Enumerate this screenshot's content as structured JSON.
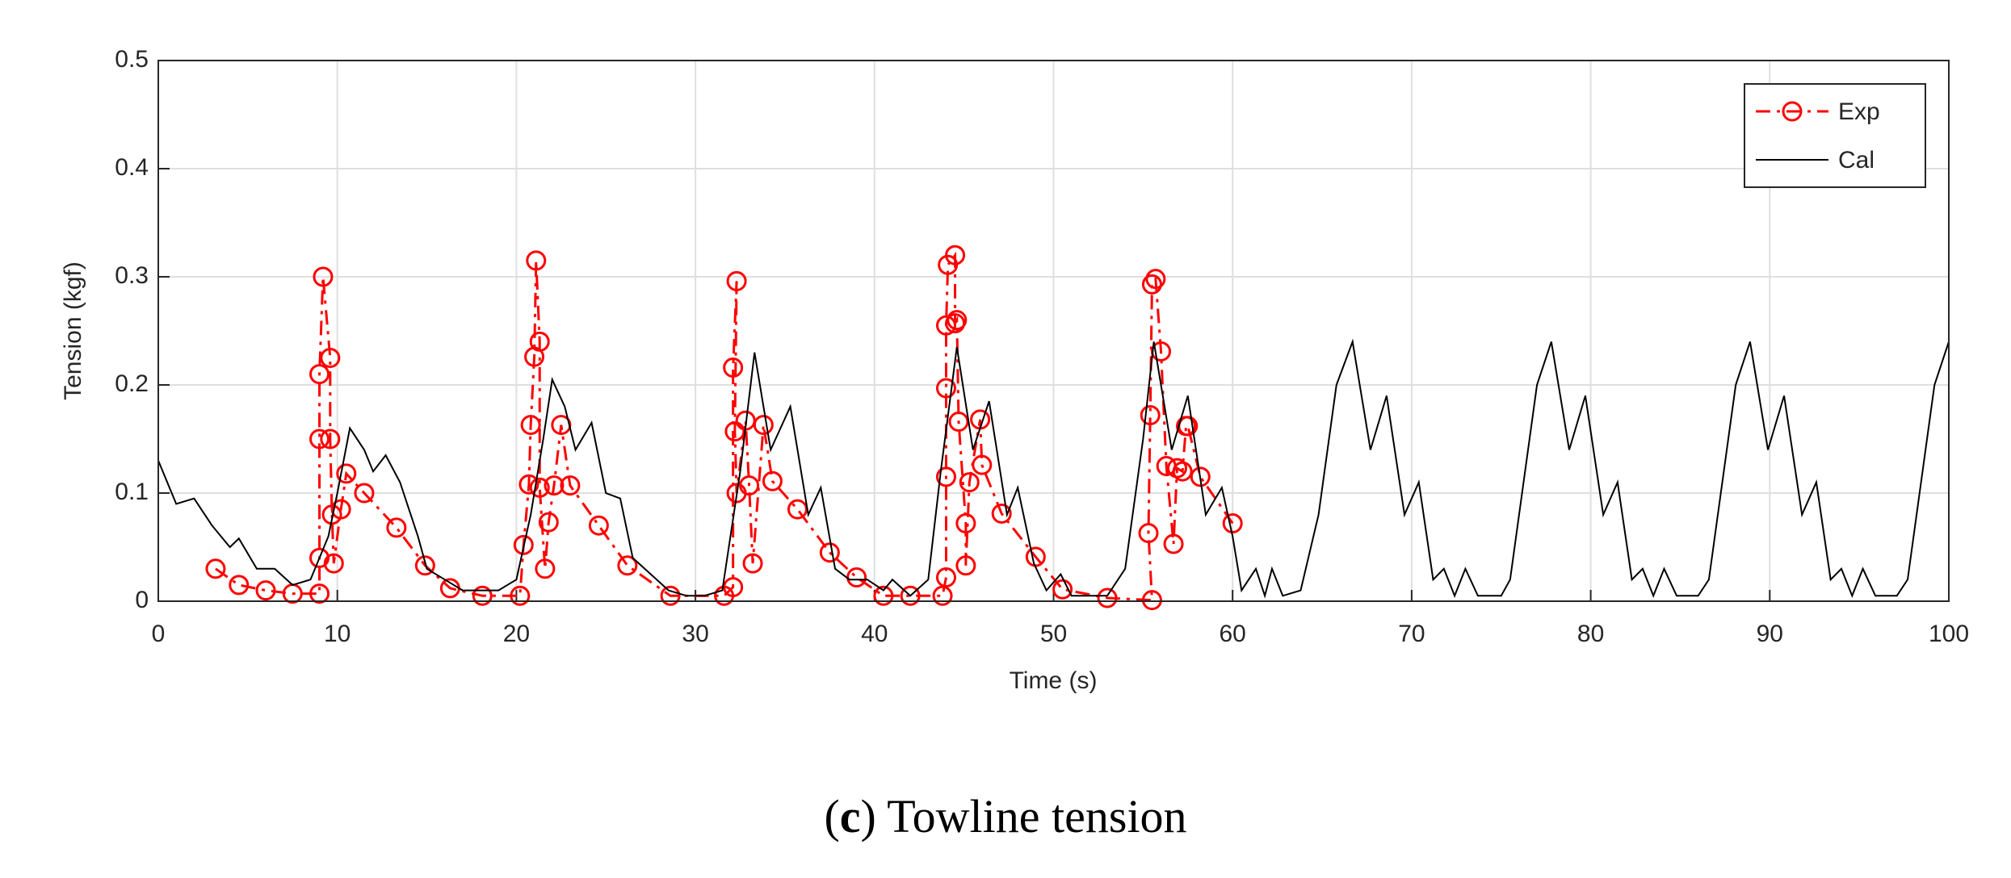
{
  "chart_data": {
    "type": "line",
    "xlabel": "Time (s)",
    "ylabel": "Tension (kgf)",
    "caption": [
      "(",
      "c",
      ") Towline tension"
    ],
    "xlim": [
      0,
      100
    ],
    "xticks": [
      0,
      10,
      20,
      30,
      40,
      50,
      60,
      70,
      80,
      90,
      100
    ],
    "ylim": [
      0,
      0.5
    ],
    "yticks": [
      0,
      0.1,
      0.2,
      0.3,
      0.4,
      0.5
    ],
    "grid": true,
    "legend": "upper right",
    "series": [
      {
        "name": "Exp",
        "color": "#ff0000",
        "marker": "circle",
        "linestyle": "dashdot",
        "x": [
          3.2,
          4.5,
          6,
          7.5,
          9,
          9,
          9,
          9,
          9.2,
          9.6,
          9.6,
          9.7,
          9.8,
          10.2,
          10.5,
          11.5,
          13.3,
          14.9,
          16.3,
          18.1,
          20.2,
          20.4,
          20.7,
          20.8,
          21,
          21.1,
          21.3,
          21.3,
          21.6,
          21.8,
          22.1,
          22.5,
          23,
          24.6,
          26.2,
          28.6,
          31.6,
          32.1,
          32.1,
          32.3,
          32.2,
          32.3,
          32.8,
          33,
          33.2,
          33.8,
          34.3,
          35.7,
          37.5,
          39,
          40.5,
          42,
          43.8,
          44,
          44,
          44,
          44,
          44.1,
          44.5,
          44.5,
          44.6,
          44.7,
          45.1,
          45.1,
          45.3,
          45.9,
          46,
          47.1,
          49,
          50.5,
          53,
          55.5,
          55.3,
          55.4,
          55.5,
          55.7,
          56,
          56.3,
          56.7,
          56.9,
          57.2,
          57.4,
          57.5,
          58.2,
          60
        ],
        "values": [
          0.03,
          0.015,
          0.01,
          0.007,
          0.007,
          0.04,
          0.15,
          0.21,
          0.3,
          0.225,
          0.15,
          0.08,
          0.035,
          0.085,
          0.118,
          0.1,
          0.068,
          0.033,
          0.012,
          0.005,
          0.005,
          0.052,
          0.108,
          0.163,
          0.226,
          0.315,
          0.24,
          0.105,
          0.03,
          0.073,
          0.107,
          0.163,
          0.107,
          0.07,
          0.033,
          0.005,
          0.005,
          0.013,
          0.216,
          0.296,
          0.157,
          0.1,
          0.167,
          0.107,
          0.035,
          0.163,
          0.111,
          0.085,
          0.045,
          0.022,
          0.005,
          0.005,
          0.005,
          0.022,
          0.115,
          0.197,
          0.255,
          0.311,
          0.32,
          0.257,
          0.26,
          0.166,
          0.072,
          0.033,
          0.11,
          0.168,
          0.126,
          0.081,
          0.041,
          0.011,
          0.003,
          0.001,
          0.063,
          0.172,
          0.293,
          0.298,
          0.231,
          0.125,
          0.053,
          0.123,
          0.12,
          0.162,
          0.162,
          0.115,
          0.072
        ]
      },
      {
        "name": "Cal",
        "color": "#000000",
        "marker": "none",
        "linestyle": "solid",
        "x": [
          0,
          1,
          2,
          3,
          4,
          4.5,
          5.5,
          6.5,
          7.5,
          8.5,
          9.5,
          10,
          10.7,
          11.5,
          12,
          12.7,
          13.5,
          14.5,
          15,
          16,
          17,
          18,
          19,
          20,
          20.8,
          21.5,
          22,
          22.7,
          23.3,
          24.2,
          25,
          25.8,
          26.5,
          27.5,
          28.5,
          29.5,
          30.5,
          31.5,
          32.5,
          33.3,
          34.2,
          35.3,
          36.3,
          37,
          37.8,
          38.6,
          39.6,
          40.5,
          41,
          42,
          43,
          43.7,
          44.6,
          45.5,
          46.4,
          47.4,
          48,
          48.9,
          49.6,
          50.4,
          51,
          52,
          53,
          54,
          55,
          55.6,
          56.6,
          57.5,
          58.5,
          59.4,
          60,
          60.5,
          61.3,
          61.8,
          62.2,
          62.8,
          63.8,
          64.8,
          65.8,
          66.7,
          67.7,
          68.6,
          69.6,
          70.4,
          71.2,
          71.8,
          72.4,
          73,
          73.7,
          75,
          75.5,
          76,
          77,
          77.8,
          78.8,
          79.7,
          80.7,
          81.5,
          82.3,
          82.9,
          83.5,
          84.1,
          84.8,
          86,
          86.6,
          87.1,
          88.1,
          88.9,
          89.9,
          90.8,
          91.8,
          92.6,
          93.4,
          94,
          94.6,
          95.2,
          95.9,
          97.1,
          97.7,
          98.2,
          99.2,
          100
        ],
        "values": [
          0.13,
          0.09,
          0.095,
          0.07,
          0.05,
          0.058,
          0.03,
          0.03,
          0.015,
          0.02,
          0.06,
          0.1,
          0.16,
          0.14,
          0.12,
          0.135,
          0.11,
          0.06,
          0.03,
          0.02,
          0.01,
          0.01,
          0.01,
          0.02,
          0.08,
          0.15,
          0.205,
          0.18,
          0.14,
          0.165,
          0.1,
          0.095,
          0.04,
          0.025,
          0.01,
          0.005,
          0.005,
          0.01,
          0.12,
          0.23,
          0.14,
          0.18,
          0.08,
          0.105,
          0.03,
          0.02,
          0.02,
          0.01,
          0.02,
          0.005,
          0.02,
          0.12,
          0.235,
          0.14,
          0.185,
          0.08,
          0.105,
          0.035,
          0.01,
          0.025,
          0.005,
          0.005,
          0.005,
          0.03,
          0.15,
          0.24,
          0.14,
          0.19,
          0.08,
          0.105,
          0.06,
          0.01,
          0.03,
          0.005,
          0.03,
          0.005,
          0.01,
          0.08,
          0.2,
          0.24,
          0.14,
          0.19,
          0.08,
          0.11,
          0.02,
          0.03,
          0.005,
          0.03,
          0.005,
          0.005,
          0.02,
          0.08,
          0.2,
          0.24,
          0.14,
          0.19,
          0.08,
          0.11,
          0.02,
          0.03,
          0.005,
          0.03,
          0.005,
          0.005,
          0.02,
          0.08,
          0.2,
          0.24,
          0.14,
          0.19,
          0.08,
          0.11,
          0.02,
          0.03,
          0.005,
          0.03,
          0.005,
          0.005,
          0.02,
          0.08,
          0.2,
          0.24
        ]
      }
    ]
  }
}
